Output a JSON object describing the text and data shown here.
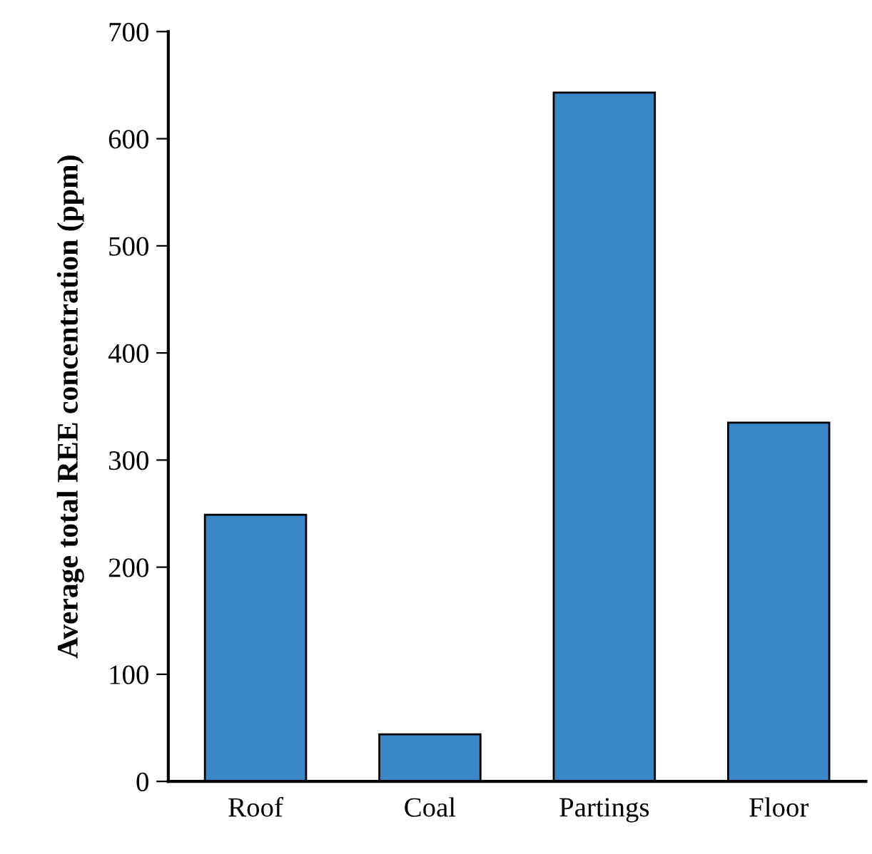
{
  "chart_data": {
    "type": "bar",
    "ylabel": "Average total REE concentration (ppm)",
    "categories": [
      "Roof",
      "Coal",
      "Partings",
      "Floor"
    ],
    "values": [
      249,
      44,
      643,
      335
    ],
    "color": "#3a87c8",
    "ylim": [
      0,
      700
    ],
    "yticks": [
      0,
      100,
      200,
      300,
      400,
      500,
      600,
      700
    ],
    "grid": false,
    "legend": false
  }
}
